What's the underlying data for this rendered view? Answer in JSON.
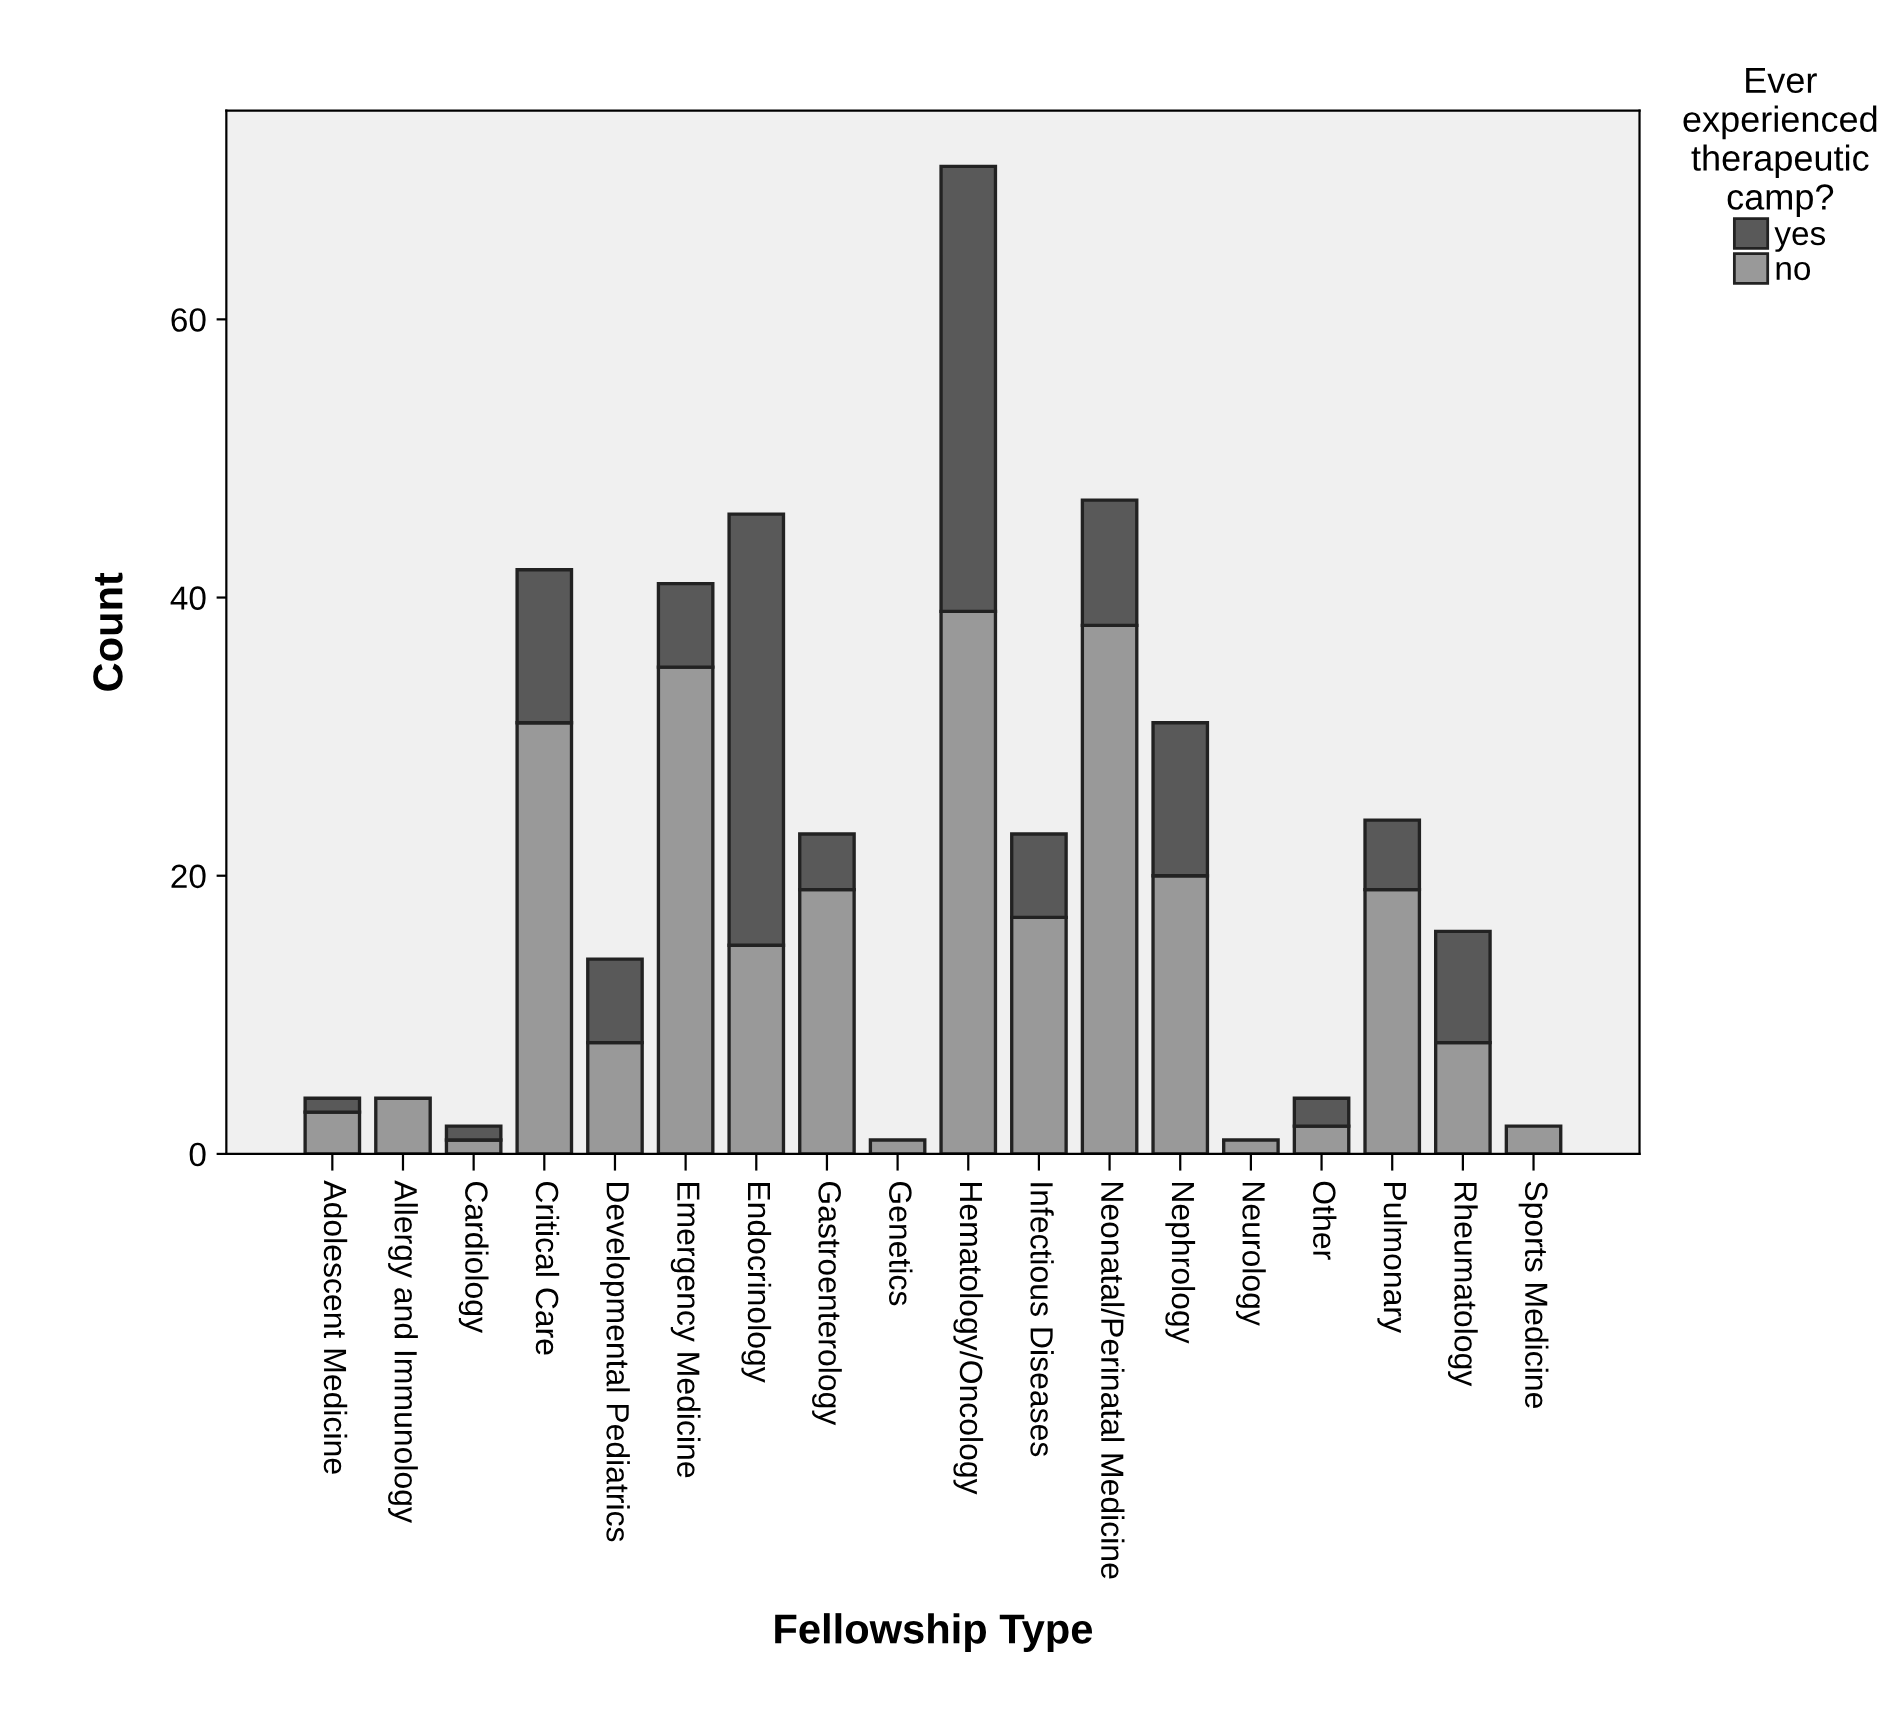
{
  "chart_data": {
    "type": "bar",
    "stacked": true,
    "xlabel": "Fellowship Type",
    "ylabel": "Count",
    "legend_title": "Ever\nexperienced\ntherapeutic\ncamp?",
    "categories": [
      "Adolescent Medicine",
      "Allergy and Immunology",
      "Cardiology",
      "Critical Care",
      "Developmental Pediatrics",
      "Emergency Medicine",
      "Endocrinology",
      "Gastroenterology",
      "Genetics",
      "Hematology/Oncology",
      "Infectious Diseases",
      "Neonatal/Perinatal Medicine",
      "Nephrology",
      "Neurology",
      "Other",
      "Pulmonary",
      "Rheumatology",
      "Sports Medicine"
    ],
    "series": [
      {
        "name": "no",
        "color": "#999999",
        "values": [
          3,
          4,
          1,
          31,
          8,
          35,
          15,
          19,
          1,
          39,
          17,
          38,
          20,
          1,
          2,
          19,
          8,
          2
        ]
      },
      {
        "name": "yes",
        "color": "#595959",
        "values": [
          1,
          null,
          1,
          11,
          6,
          6,
          31,
          4,
          null,
          32,
          6,
          9,
          11,
          null,
          2,
          5,
          8,
          null
        ]
      }
    ],
    "ylim": [
      0,
      75
    ],
    "yticks": [
      0,
      20,
      40,
      60
    ],
    "grid": false,
    "legend": "top right"
  }
}
